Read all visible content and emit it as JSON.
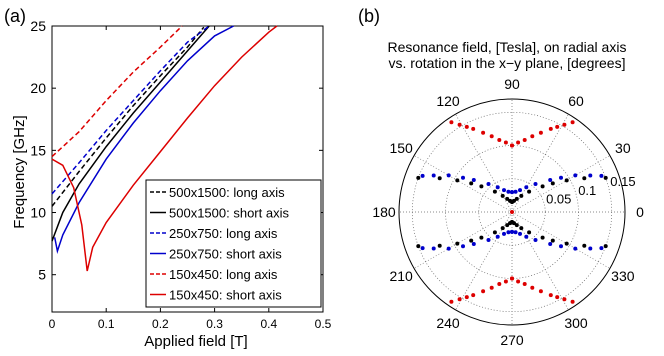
{
  "chart_data": [
    {
      "type": "line",
      "panel_label": "(a)",
      "title": "",
      "xlabel": "Applied field  [T]",
      "ylabel": "Frequency  [GHz]",
      "xlim": [
        0,
        0.5
      ],
      "ylim": [
        2,
        25
      ],
      "xticks": [
        "0",
        "0.1",
        "0.2",
        "0.3",
        "0.4",
        "0.5"
      ],
      "yticks": [
        "5",
        "10",
        "15",
        "20",
        "25"
      ],
      "xtick_values": [
        0,
        0.1,
        0.2,
        0.3,
        0.4,
        0.5
      ],
      "ytick_values": [
        5,
        10,
        15,
        20,
        25
      ],
      "legend_position": "bottom-right",
      "series": [
        {
          "name": "500x1500: long axis",
          "color": "#000000",
          "dash": "dashed",
          "x": [
            0,
            0.05,
            0.1,
            0.15,
            0.2,
            0.25,
            0.28
          ],
          "y": [
            10.5,
            13.3,
            16.0,
            18.6,
            21.0,
            23.3,
            24.9
          ]
        },
        {
          "name": "500x1500: short axis",
          "color": "#000000",
          "dash": "solid",
          "x": [
            0,
            0.02,
            0.05,
            0.1,
            0.15,
            0.2,
            0.25,
            0.29
          ],
          "y": [
            7.7,
            10.0,
            12.3,
            15.3,
            18.0,
            20.5,
            23.0,
            25.0
          ]
        },
        {
          "name": "250x750: long axis",
          "color": "#0000cc",
          "dash": "dashed",
          "x": [
            0,
            0.05,
            0.1,
            0.15,
            0.2,
            0.25,
            0.29
          ],
          "y": [
            11.5,
            14.0,
            16.6,
            19.0,
            21.4,
            23.7,
            25.0
          ]
        },
        {
          "name": "250x750: short axis",
          "color": "#0000cc",
          "dash": "solid",
          "x": [
            0.005,
            0.01,
            0.02,
            0.05,
            0.1,
            0.15,
            0.2,
            0.25,
            0.3,
            0.335
          ],
          "y": [
            8.0,
            6.9,
            8.2,
            10.8,
            14.3,
            17.2,
            19.8,
            22.2,
            24.2,
            25.0
          ]
        },
        {
          "name": "150x450: long axis",
          "color": "#dd0000",
          "dash": "dashed",
          "x": [
            0,
            0.05,
            0.1,
            0.15,
            0.2,
            0.24
          ],
          "y": [
            14.5,
            16.5,
            19.0,
            21.3,
            23.3,
            25.0
          ]
        },
        {
          "name": "150x450: short axis",
          "color": "#dd0000",
          "dash": "solid",
          "x": [
            0,
            0.02,
            0.04,
            0.055,
            0.065,
            0.075,
            0.1,
            0.15,
            0.2,
            0.25,
            0.3,
            0.35,
            0.4,
            0.415
          ],
          "y": [
            14.3,
            13.8,
            12.0,
            9.0,
            5.3,
            7.2,
            9.2,
            12.2,
            14.9,
            17.6,
            20.2,
            22.5,
            24.5,
            25.0
          ]
        }
      ]
    },
    {
      "type": "scatter",
      "subtype": "polar",
      "panel_label": "(b)",
      "title": "Resonance field, [Tesla], on radial axis\nvs. rotation in the x−y plane, [degrees]",
      "title_lines": [
        "Resonance field, [Tesla], on radial axis",
        "vs. rotation in the x−y plane, [degrees]"
      ],
      "r_max": 0.17,
      "radial_ticks": [
        "0.05",
        "0.1",
        "0.15"
      ],
      "radial_tick_values": [
        0.05,
        0.1,
        0.15
      ],
      "angle_labels": [
        "0",
        "30",
        "60",
        "90",
        "120",
        "150",
        "180",
        "210",
        "240",
        "270",
        "300",
        "330"
      ],
      "angle_tick_values": [
        0,
        30,
        60,
        90,
        120,
        150,
        180,
        210,
        240,
        270,
        300,
        330
      ],
      "series": [
        {
          "color": "#000000",
          "theta_deg": [
            90,
            80,
            70,
            60,
            50,
            40,
            35,
            30,
            25,
            20
          ],
          "r": [
            0.015,
            0.017,
            0.021,
            0.028,
            0.04,
            0.06,
            0.075,
            0.095,
            0.12,
            0.15
          ]
        },
        {
          "color": "#0000cc",
          "theta_deg": [
            90,
            80,
            70,
            60,
            50,
            40,
            35,
            30,
            25,
            22
          ],
          "r": [
            0.03,
            0.031,
            0.035,
            0.043,
            0.055,
            0.075,
            0.09,
            0.11,
            0.13,
            0.145
          ]
        },
        {
          "color": "#dd0000",
          "theta_deg": [
            90,
            85,
            80,
            75,
            70,
            65,
            62,
            59,
            56
          ],
          "r": [
            0.1,
            0.105,
            0.11,
            0.118,
            0.127,
            0.138,
            0.145,
            0.153,
            0.163
          ]
        }
      ]
    }
  ]
}
